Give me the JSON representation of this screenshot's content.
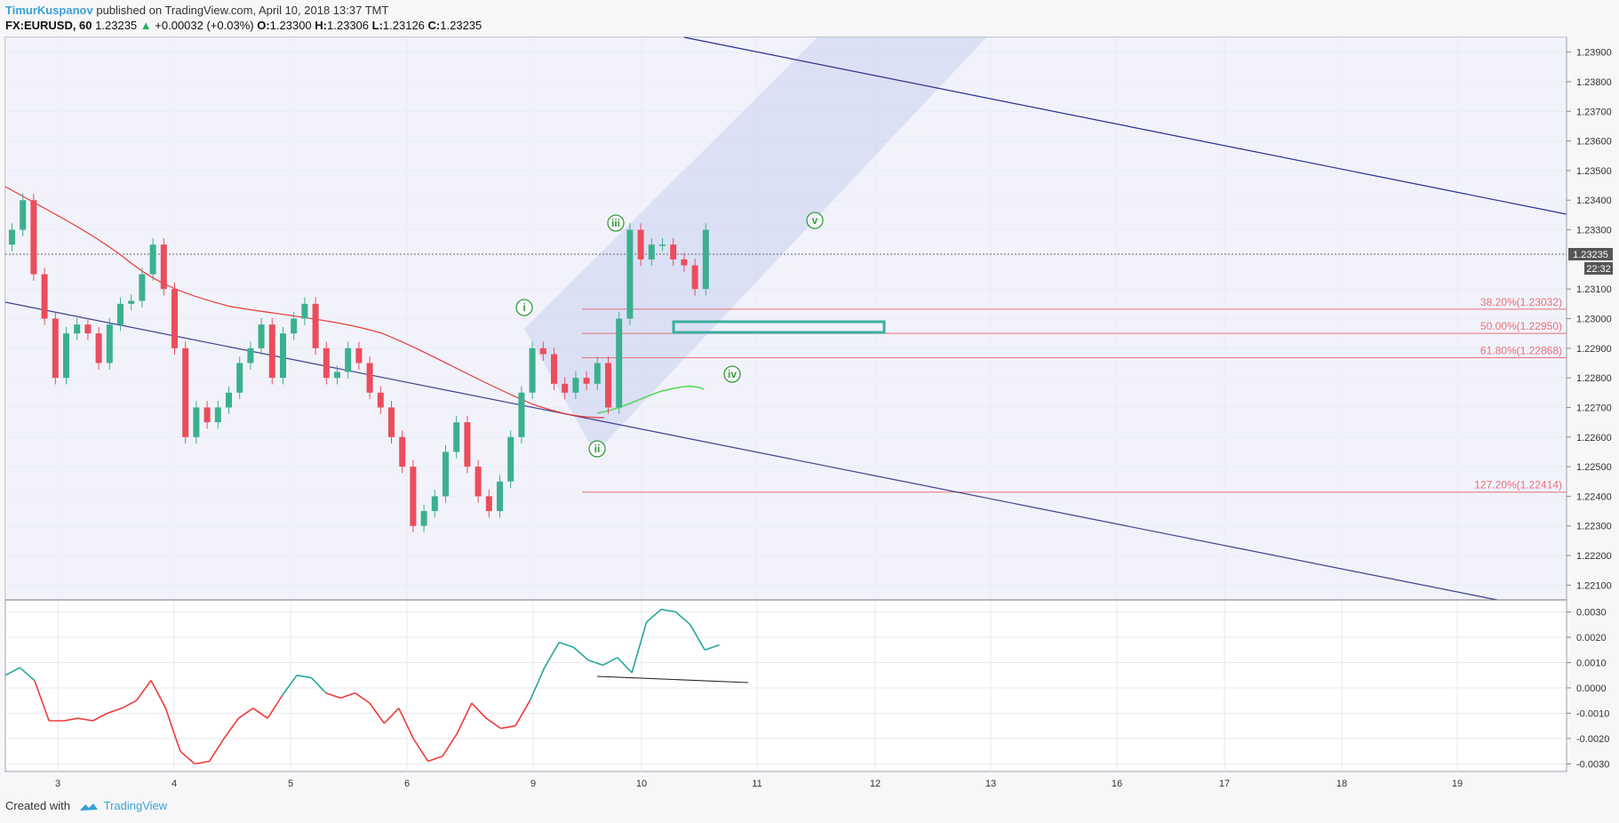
{
  "header": {
    "author": "TimurKuspanov",
    "published": "published on TradingView.com, April 10, 2018 13:37 TMT",
    "symbol": "FX:EURUSD, 60",
    "last": "1.23235",
    "change": "+0.00032 (+0.03%)",
    "o_label": "O:",
    "o_value": "1.23300",
    "h_label": "H:",
    "h_value": "1.23306",
    "l_label": "L:",
    "l_value": "1.23126",
    "c_label": "C:",
    "c_value": "1.23235"
  },
  "footer": {
    "created_with": "Created with",
    "brand": "TradingView"
  },
  "colors": {
    "up": "#3bb08f",
    "down": "#ea4d5c",
    "channel": "#2b2f8c",
    "fib": "#e8707a",
    "ma": "#e53935",
    "ma_green": "#59d65c",
    "wave": "#3c9a3c",
    "oscillator_pos": "#26a69a",
    "oscillator_neg": "#ef3b3b"
  },
  "chart_data": [
    {
      "type": "candlestick",
      "title": "EURUSD 60",
      "x_tick_labels": [
        "3",
        "4",
        "5",
        "6",
        "9",
        "10",
        "11",
        "12",
        "13",
        "16",
        "17",
        "18",
        "19"
      ],
      "y_tick_labels": [
        "1.23900",
        "1.23800",
        "1.23700",
        "1.23600",
        "1.23500",
        "1.23400",
        "1.23300",
        "1.23100",
        "1.23000",
        "1.22900",
        "1.22800",
        "1.22700",
        "1.22600",
        "1.22500",
        "1.22400",
        "1.22300",
        "1.22200",
        "1.22100"
      ],
      "y_range": [
        1.2205,
        1.2395
      ],
      "last_price_label": "1.23235",
      "countdown_label": "22:32",
      "candles_close": [
        1.233,
        1.234,
        1.2315,
        1.23,
        1.228,
        1.2295,
        1.2298,
        1.2295,
        1.2285,
        1.2298,
        1.2305,
        1.2306,
        1.2315,
        1.2325,
        1.231,
        1.229,
        1.226,
        1.227,
        1.2265,
        1.227,
        1.2275,
        1.2285,
        1.229,
        1.2298,
        1.228,
        1.2295,
        1.23,
        1.2305,
        1.229,
        1.228,
        1.2282,
        1.229,
        1.2285,
        1.2275,
        1.227,
        1.226,
        1.225,
        1.223,
        1.2235,
        1.224,
        1.2255,
        1.2265,
        1.225,
        1.224,
        1.2235,
        1.2245,
        1.226,
        1.2275,
        1.229,
        1.2288,
        1.2278,
        1.2275,
        1.228,
        1.2278,
        1.2285,
        1.227,
        1.23,
        1.233,
        1.232,
        1.2325,
        1.2325,
        1.232,
        1.2318,
        1.231,
        1.233
      ],
      "fib_levels": [
        {
          "label": "38.20%(1.23032)",
          "value": 1.23032
        },
        {
          "label": "50.00%(1.22950)",
          "value": 1.2295
        },
        {
          "label": "61.80%(1.22868)",
          "value": 1.22868
        },
        {
          "label": "127.20%(1.22414)",
          "value": 1.22414
        }
      ],
      "wave_labels": [
        "i",
        "ii",
        "iii",
        "iv",
        "v"
      ]
    },
    {
      "type": "line",
      "title": "Oscillator",
      "y_tick_labels": [
        "0.0030",
        "0.0020",
        "0.0010",
        "0.0000",
        "-0.0010",
        "-0.0020",
        "-0.0030"
      ],
      "y_range": [
        -0.0033,
        0.0033
      ],
      "values": [
        0.0005,
        0.0008,
        0.0003,
        -0.0013,
        -0.0013,
        -0.0012,
        -0.0013,
        -0.001,
        -0.0008,
        -0.0005,
        0.0003,
        -0.0008,
        -0.0025,
        -0.003,
        -0.0029,
        -0.002,
        -0.0012,
        -0.0008,
        -0.0012,
        -0.0003,
        0.0005,
        0.0004,
        -0.0002,
        -0.0004,
        -0.0002,
        -0.0006,
        -0.0014,
        -0.0008,
        -0.002,
        -0.0029,
        -0.0027,
        -0.0018,
        -0.0006,
        -0.0012,
        -0.0016,
        -0.0015,
        -0.0005,
        0.0008,
        0.0018,
        0.0016,
        0.0011,
        0.0009,
        0.0012,
        0.0006,
        0.0026,
        0.0031,
        0.003,
        0.0025,
        0.0015,
        0.0017
      ]
    }
  ]
}
